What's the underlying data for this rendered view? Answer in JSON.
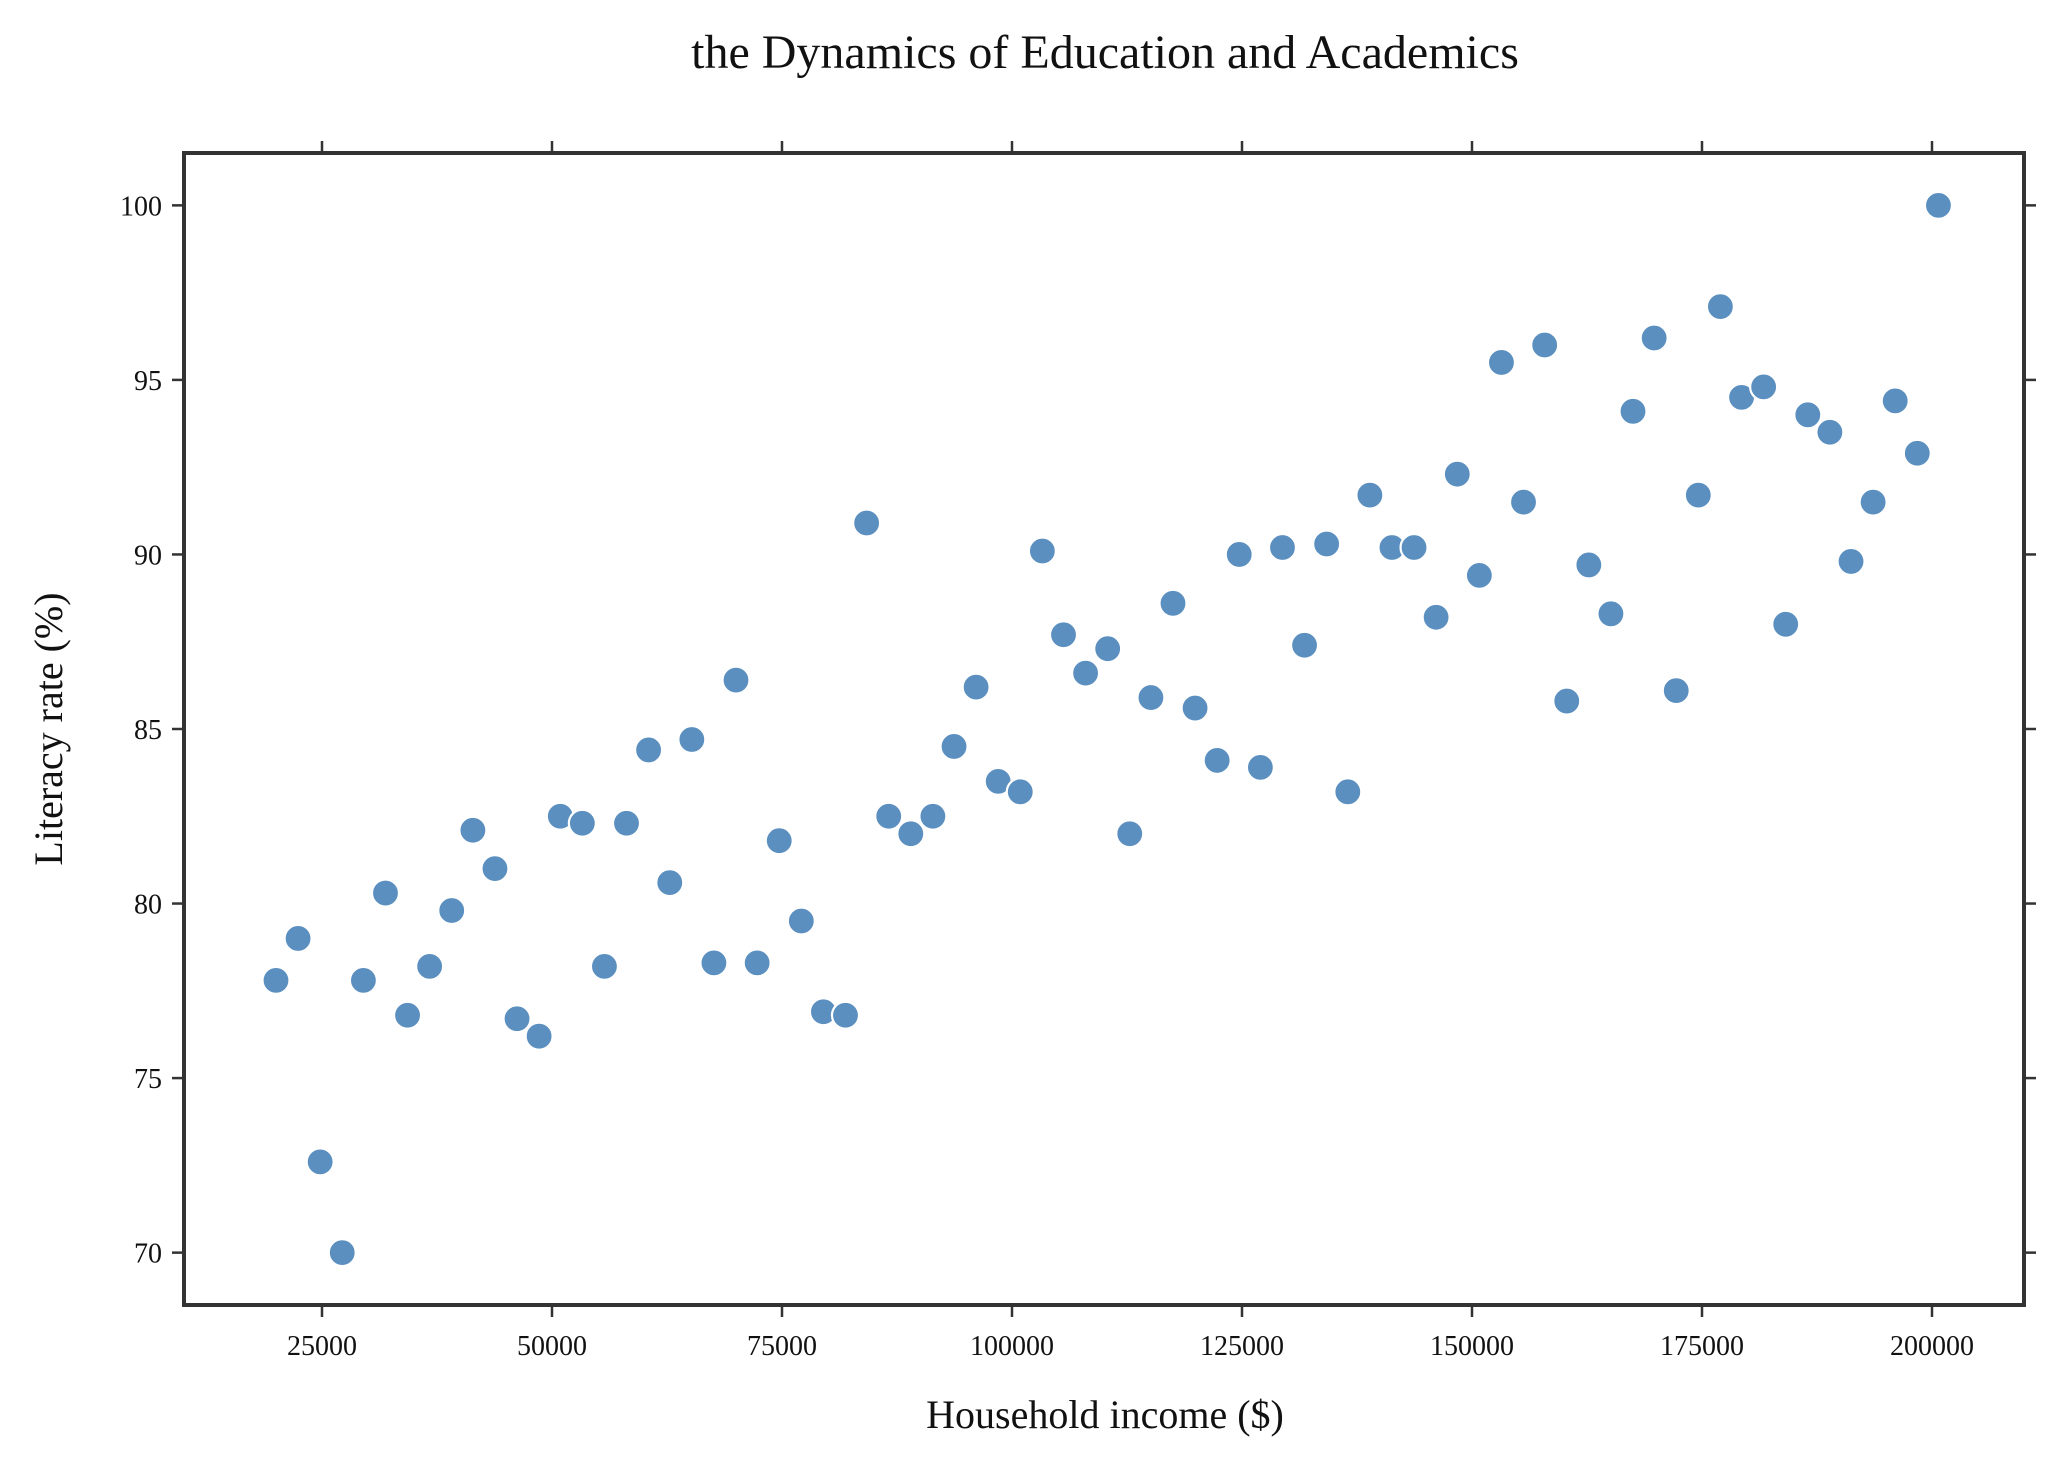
{
  "chart_data": {
    "type": "scatter",
    "title": "the Dynamics of Education and Academics",
    "xlabel": "Household income ($)",
    "ylabel": "Literacy rate (%)",
    "xlim": [
      10000,
      210000
    ],
    "ylim": [
      68.5,
      101.5
    ],
    "xticks": [
      25000,
      50000,
      75000,
      100000,
      125000,
      150000,
      175000,
      200000
    ],
    "yticks": [
      70,
      75,
      80,
      85,
      90,
      95,
      100
    ],
    "grid": false,
    "legend": "none",
    "marker_color": "#5b8fbf",
    "marker_edge_color": "#ffffff",
    "points": [
      {
        "x": 20000,
        "y": 77.8
      },
      {
        "x": 22400,
        "y": 79.0
      },
      {
        "x": 24800,
        "y": 72.6
      },
      {
        "x": 27200,
        "y": 70.0
      },
      {
        "x": 29500,
        "y": 77.8
      },
      {
        "x": 31900,
        "y": 80.3
      },
      {
        "x": 34300,
        "y": 76.8
      },
      {
        "x": 36700,
        "y": 78.2
      },
      {
        "x": 39100,
        "y": 79.8
      },
      {
        "x": 41400,
        "y": 82.1
      },
      {
        "x": 43800,
        "y": 81.0
      },
      {
        "x": 46200,
        "y": 76.7
      },
      {
        "x": 48600,
        "y": 76.2
      },
      {
        "x": 50900,
        "y": 82.5
      },
      {
        "x": 53300,
        "y": 82.3
      },
      {
        "x": 55700,
        "y": 78.2
      },
      {
        "x": 58100,
        "y": 82.3
      },
      {
        "x": 60500,
        "y": 84.4
      },
      {
        "x": 62800,
        "y": 80.6
      },
      {
        "x": 65200,
        "y": 84.7
      },
      {
        "x": 67600,
        "y": 78.3
      },
      {
        "x": 70000,
        "y": 86.4
      },
      {
        "x": 72300,
        "y": 78.3
      },
      {
        "x": 74700,
        "y": 81.8
      },
      {
        "x": 77100,
        "y": 79.5
      },
      {
        "x": 79500,
        "y": 76.9
      },
      {
        "x": 81900,
        "y": 76.8
      },
      {
        "x": 84200,
        "y": 90.9
      },
      {
        "x": 86600,
        "y": 82.5
      },
      {
        "x": 89000,
        "y": 82.0
      },
      {
        "x": 91400,
        "y": 82.5
      },
      {
        "x": 93700,
        "y": 84.5
      },
      {
        "x": 96100,
        "y": 86.2
      },
      {
        "x": 98500,
        "y": 83.5
      },
      {
        "x": 100900,
        "y": 83.2
      },
      {
        "x": 103300,
        "y": 90.1
      },
      {
        "x": 105600,
        "y": 87.7
      },
      {
        "x": 108000,
        "y": 86.6
      },
      {
        "x": 110400,
        "y": 87.3
      },
      {
        "x": 112800,
        "y": 82.0
      },
      {
        "x": 115100,
        "y": 85.9
      },
      {
        "x": 117500,
        "y": 88.6
      },
      {
        "x": 119900,
        "y": 85.6
      },
      {
        "x": 122300,
        "y": 84.1
      },
      {
        "x": 124700,
        "y": 90.0
      },
      {
        "x": 127000,
        "y": 83.9
      },
      {
        "x": 129400,
        "y": 90.2
      },
      {
        "x": 131800,
        "y": 87.4
      },
      {
        "x": 134200,
        "y": 90.3
      },
      {
        "x": 136500,
        "y": 83.2
      },
      {
        "x": 138900,
        "y": 91.7
      },
      {
        "x": 141300,
        "y": 90.2
      },
      {
        "x": 143700,
        "y": 90.2
      },
      {
        "x": 146100,
        "y": 88.2
      },
      {
        "x": 148400,
        "y": 92.3
      },
      {
        "x": 150800,
        "y": 89.4
      },
      {
        "x": 153200,
        "y": 95.5
      },
      {
        "x": 155600,
        "y": 91.5
      },
      {
        "x": 157900,
        "y": 96.0
      },
      {
        "x": 160300,
        "y": 85.8
      },
      {
        "x": 162700,
        "y": 89.7
      },
      {
        "x": 165100,
        "y": 88.3
      },
      {
        "x": 167500,
        "y": 94.1
      },
      {
        "x": 169800,
        "y": 96.2
      },
      {
        "x": 172200,
        "y": 86.1
      },
      {
        "x": 174600,
        "y": 91.7
      },
      {
        "x": 177000,
        "y": 97.1
      },
      {
        "x": 179300,
        "y": 94.5
      },
      {
        "x": 181700,
        "y": 94.8
      },
      {
        "x": 184100,
        "y": 88.0
      },
      {
        "x": 186500,
        "y": 94.0
      },
      {
        "x": 188900,
        "y": 93.5
      },
      {
        "x": 191200,
        "y": 89.8
      },
      {
        "x": 193600,
        "y": 91.5
      },
      {
        "x": 196000,
        "y": 94.4
      },
      {
        "x": 198400,
        "y": 92.9
      },
      {
        "x": 200700,
        "y": 100.0
      }
    ]
  }
}
